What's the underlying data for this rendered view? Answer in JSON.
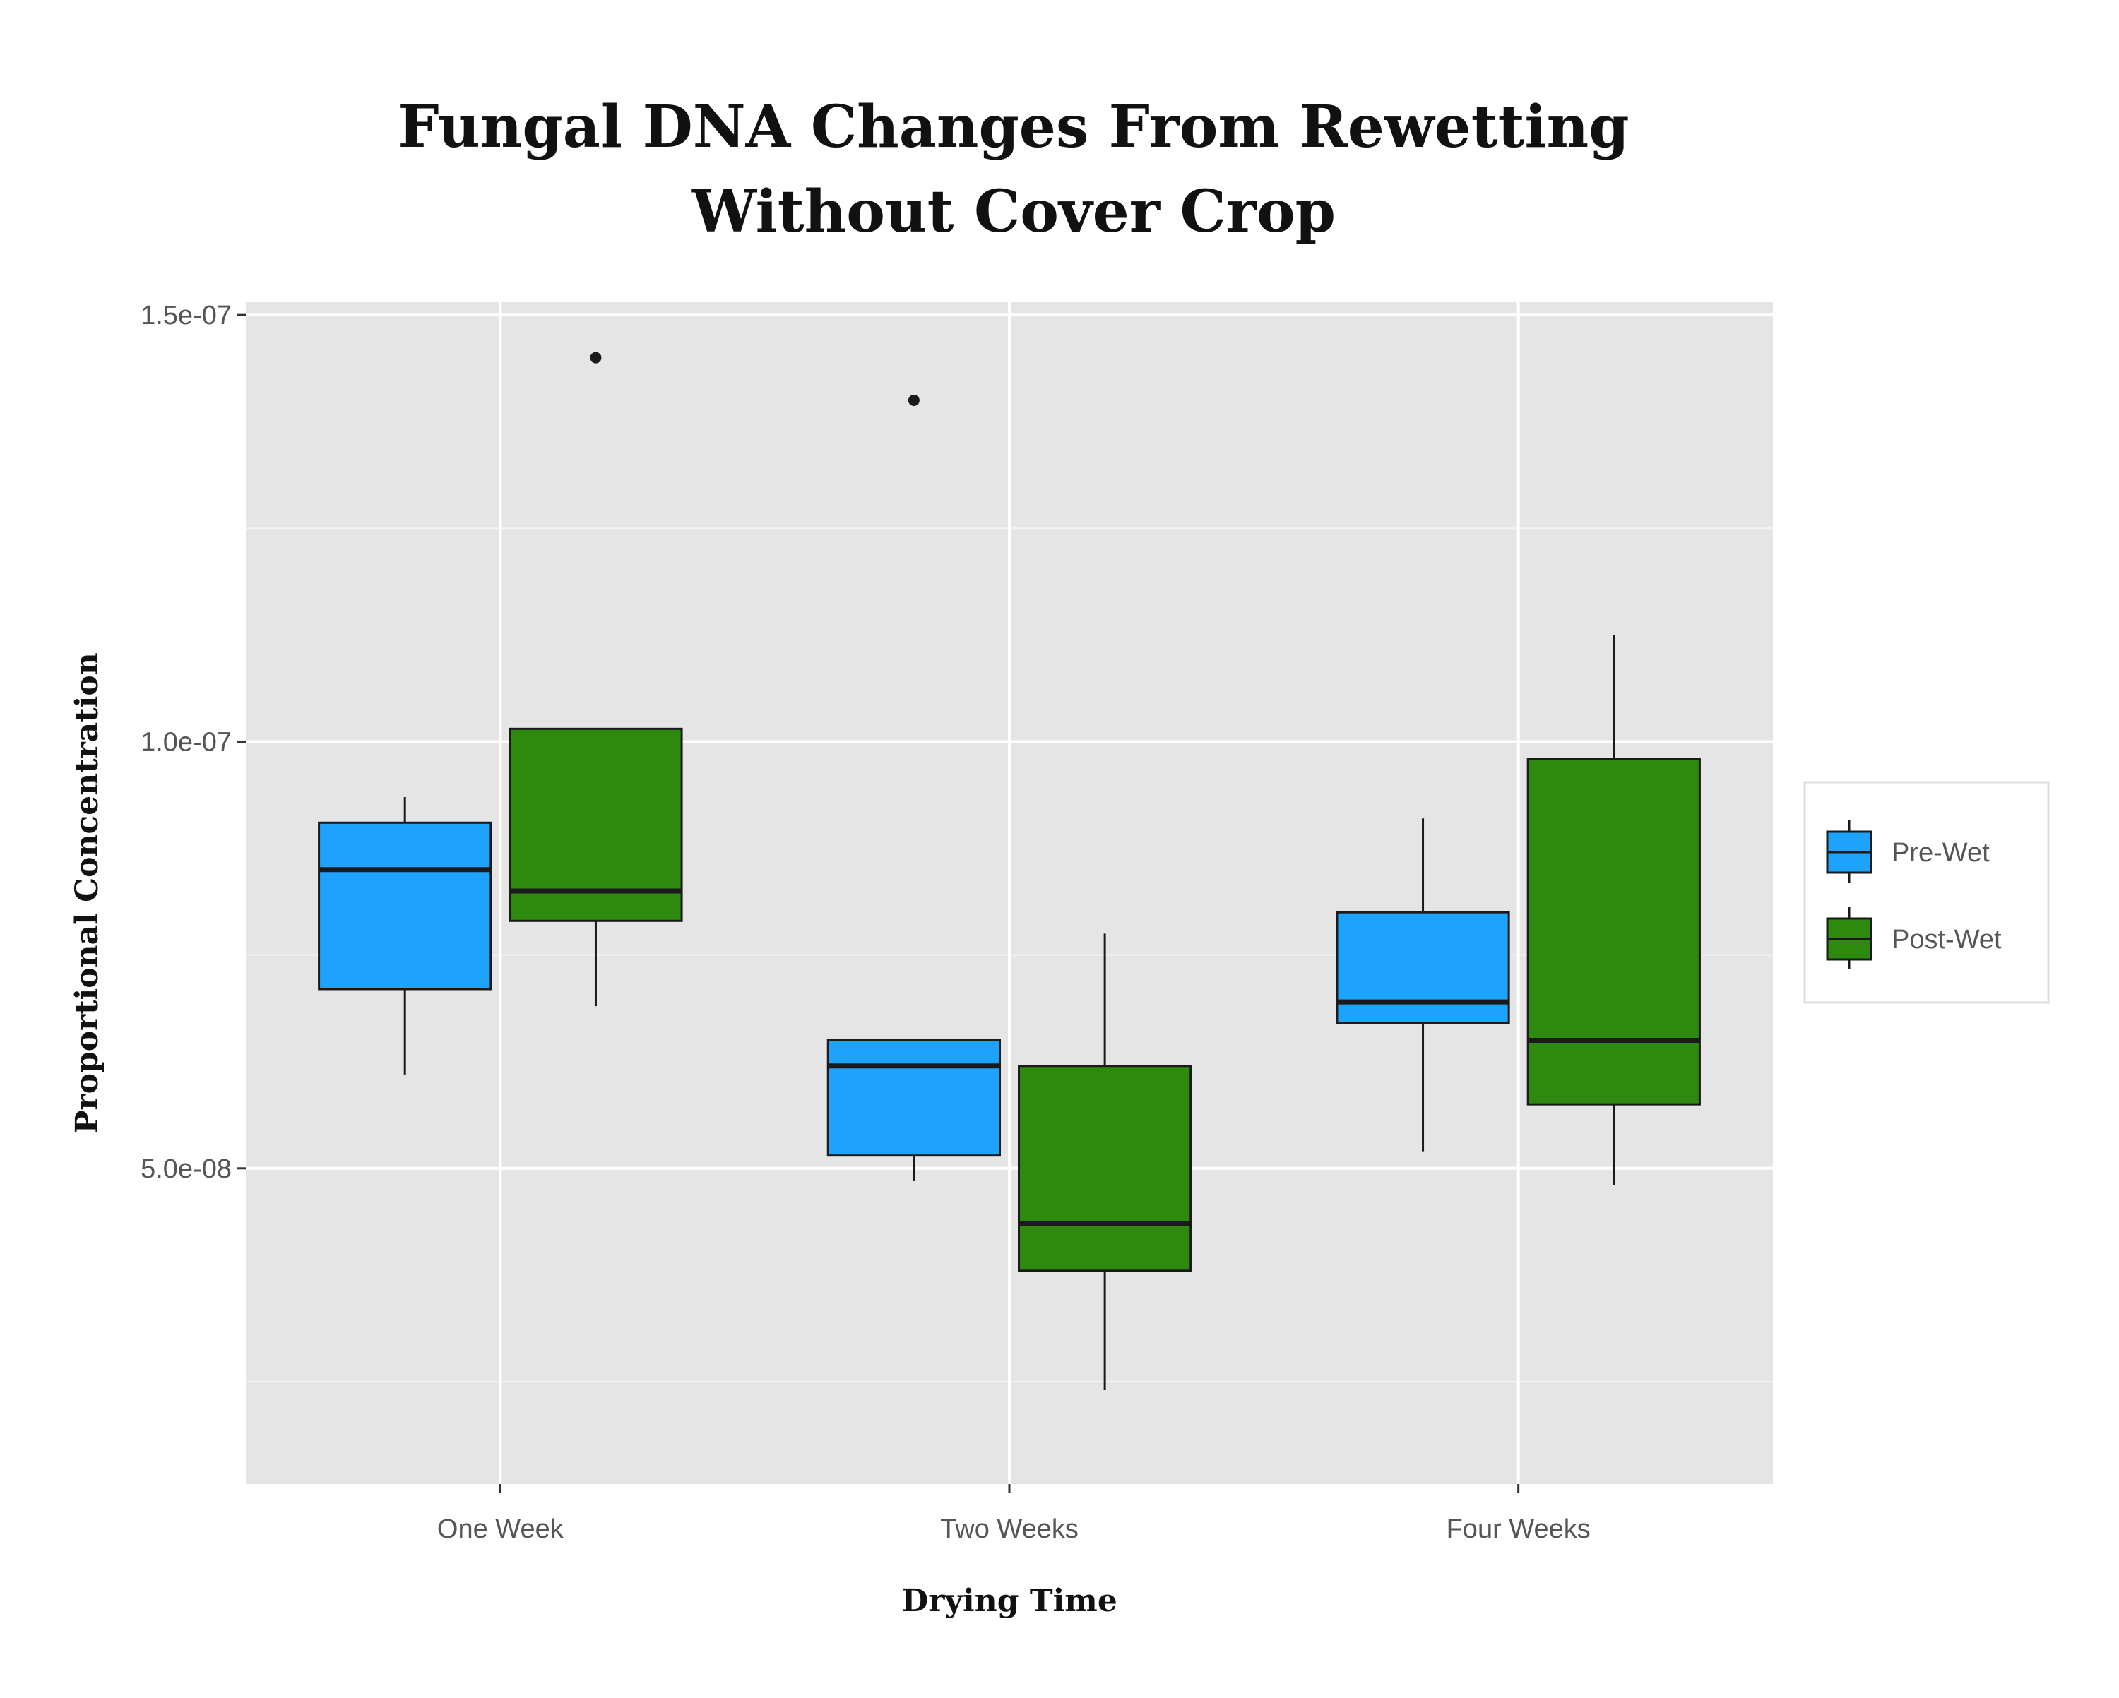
{
  "chart_data": {
    "type": "box",
    "title_line1": "Fungal DNA Changes From Rewetting",
    "title_line2": "Without Cover Crop",
    "xlabel": "Drying Time",
    "ylabel": "Proportional Concentration",
    "categories": [
      "One Week",
      "Two Weeks",
      "Four Weeks"
    ],
    "ylim": [
      1.3e-08,
      1.515e-07
    ],
    "yticks": [
      5e-08,
      1e-07,
      1.5e-07
    ],
    "ytick_labels": [
      "5.0e-08",
      "1.0e-07",
      "1.5e-07"
    ],
    "minor_gridlines": [
      2.5e-08,
      7.5e-08,
      1.25e-07
    ],
    "grid": true,
    "legend_position": "right",
    "series": [
      {
        "name": "Pre-Wet",
        "color": "#1ea3fd",
        "boxes": [
          {
            "category": "One Week",
            "whisker_low": 6.1e-08,
            "q1": 7.1e-08,
            "median": 8.5e-08,
            "q3": 9.05e-08,
            "whisker_high": 9.35e-08,
            "outliers": []
          },
          {
            "category": "Two Weeks",
            "whisker_low": 4.85e-08,
            "q1": 5.15e-08,
            "median": 6.2e-08,
            "q3": 6.5e-08,
            "whisker_high": 6.5e-08,
            "outliers": [
              1.4e-07
            ]
          },
          {
            "category": "Four Weeks",
            "whisker_low": 5.2e-08,
            "q1": 6.7e-08,
            "median": 6.95e-08,
            "q3": 8e-08,
            "whisker_high": 9.1e-08,
            "outliers": []
          }
        ]
      },
      {
        "name": "Post-Wet",
        "color": "#2d8a0e",
        "boxes": [
          {
            "category": "One Week",
            "whisker_low": 6.9e-08,
            "q1": 7.9e-08,
            "median": 8.25e-08,
            "q3": 1.015e-07,
            "whisker_high": 1.015e-07,
            "outliers": [
              1.45e-07
            ]
          },
          {
            "category": "Two Weeks",
            "whisker_low": 2.4e-08,
            "q1": 3.8e-08,
            "median": 4.35e-08,
            "q3": 6.2e-08,
            "whisker_high": 7.75e-08,
            "outliers": []
          },
          {
            "category": "Four Weeks",
            "whisker_low": 4.8e-08,
            "q1": 5.75e-08,
            "median": 6.5e-08,
            "q3": 9.8e-08,
            "whisker_high": 1.125e-07,
            "outliers": []
          }
        ]
      }
    ]
  }
}
